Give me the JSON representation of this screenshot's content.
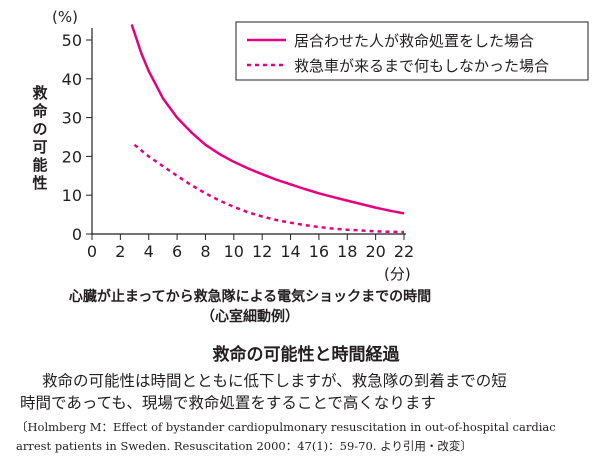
{
  "chart_data": {
    "type": "line",
    "x_ticks": [
      "0",
      "2",
      "4",
      "6",
      "8",
      "10",
      "12",
      "14",
      "16",
      "18",
      "20",
      "22"
    ],
    "y_ticks": [
      "0",
      "10",
      "20",
      "30",
      "40",
      "50"
    ],
    "xlim": [
      0,
      22
    ],
    "ylim": [
      0,
      50
    ],
    "y_unit": "(%)",
    "x_unit": "(分)",
    "ylabel_chars": [
      "救",
      "命",
      "の",
      "可",
      "能",
      "性"
    ],
    "grid": false,
    "legend_position": "top-right",
    "series": [
      {
        "name": "居合わせた人が救命処置をした場合",
        "style": "solid",
        "color": "#e4007f",
        "x": [
          2.8,
          3.5,
          4,
          5,
          6,
          7,
          8,
          9,
          10,
          11,
          12,
          13,
          14,
          15,
          16,
          17,
          18,
          19,
          20,
          21,
          22
        ],
        "y": [
          54,
          46.4,
          42,
          35,
          30,
          26.2,
          23,
          20.6,
          18.6,
          16.9,
          15.4,
          14,
          12.8,
          11.6,
          10.5,
          9.5,
          8.6,
          7.7,
          6.8,
          6,
          5.3
        ]
      },
      {
        "name": "救急車が来るまで何もしなかった場合",
        "style": "dashed",
        "color": "#e4007f",
        "x": [
          3,
          4,
          5,
          6,
          7,
          8,
          9,
          10,
          11,
          12,
          13,
          14,
          15,
          16,
          17,
          18,
          19,
          20,
          21,
          22
        ],
        "y": [
          23,
          20,
          17.5,
          15,
          12.6,
          10.5,
          8.6,
          7,
          5.6,
          4.5,
          3.6,
          2.9,
          2.3,
          1.8,
          1.4,
          1.1,
          0.9,
          0.7,
          0.6,
          0.5
        ]
      }
    ]
  },
  "xlabel": {
    "line1": "心臓が止まってから救急隊による電気ショックまでの時間",
    "line2": "（心室細動例）"
  },
  "caption": {
    "title": "救命の可能性と時間経過",
    "body_line1": "救命の可能性は時間とともに低下しますが、救急隊の到着までの短",
    "body_line2": "時間であっても、現場で救命処置をすることで高くなります"
  },
  "citation": {
    "line1": "〔Holmberg M：Effect of bystander cardiopulmonary resuscitation in out-of-hospital cardiac",
    "line2": "arrest patients in Sweden. Resuscitation 2000：47(1)：59-70. より引用・改変〕"
  }
}
